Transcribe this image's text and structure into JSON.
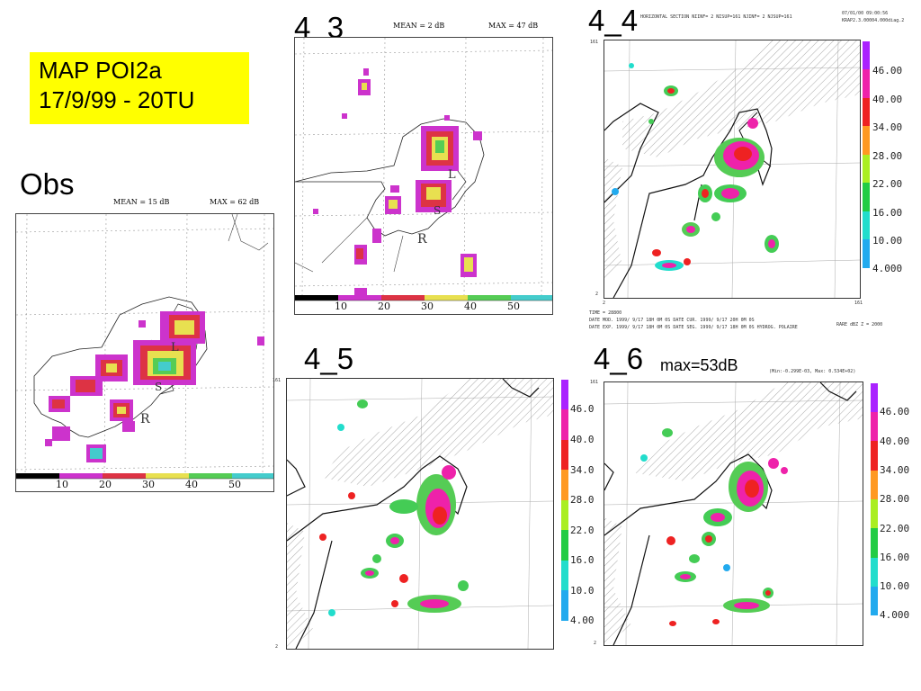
{
  "title": {
    "line1": "MAP POI2a",
    "line2": "17/9/99 - 20TU"
  },
  "obs": {
    "label": "Obs",
    "mean_label": "MEAN =  15 dB",
    "max_label": "MAX =  62 dB",
    "scale_ticks": [
      "10",
      "20",
      "30",
      "40",
      "50"
    ],
    "map_letters": {
      "l": "L",
      "s": "S",
      "r": "R"
    }
  },
  "run_4_3": {
    "label": "4_3",
    "mean_label": "MEAN =   2 dB",
    "max_label": "MAX =  47 dB",
    "scale_ticks": [
      "10",
      "20",
      "30",
      "40",
      "50"
    ],
    "map_letters": {
      "l": "L",
      "s": "S",
      "r": "R"
    }
  },
  "run_4_4": {
    "label": "4_4",
    "header_text": "HORIZONTAL SECTION  NIINF=   2 NISUP=161  NJINF=   2 NJSUP=161",
    "header_right": "07/01/00    09:00:56",
    "header_right2": "KRAP2.3.00004.000diag.2",
    "corner_top": "161",
    "corner_bottom_left": "2",
    "corner_bottom_right": "161",
    "corner_y": "2",
    "footer_lines": [
      "TIME =   28800",
      "DATE MOD. 1999/ 9/17  18H 0M 0S    DATE CUR. 1999/ 9/17  20H 0M 0S",
      "DATE EXP. 1999/ 9/17  18H 0M 0S    DATE SEG. 1999/ 9/17  18H 0M 0S   HYDROG. POLAIRE"
    ],
    "footer_right": "RARE dBZ     Z =  2000",
    "scale_values": [
      "46.00",
      "40.00",
      "34.00",
      "28.00",
      "22.00",
      "16.00",
      "10.00",
      "4.000"
    ]
  },
  "run_4_5": {
    "label": "4_5",
    "corner_top": "161",
    "corner_bottom": "2",
    "scale_values": [
      "46.0",
      "40.0",
      "34.0",
      "28.0",
      "22.0",
      "16.0",
      "10.0",
      "4.00"
    ]
  },
  "run_4_6": {
    "label": "4_6",
    "max_note": "max=53dB",
    "minmax_text": "(Min:-0.299E-03, Max: 0.534E+02)",
    "corner_top": "161",
    "corner_bottom": "2",
    "scale_values": [
      "46.00",
      "40.00",
      "34.00",
      "28.00",
      "22.00",
      "16.00",
      "10.00",
      "4.000"
    ]
  },
  "colors": {
    "title_box": "#ffff00",
    "scale": [
      "#000000",
      "#cc33cc",
      "#dd3344",
      "#e8e050",
      "#55cc55",
      "#44cccc"
    ],
    "vscale": [
      "#aa22ff",
      "#ee22aa",
      "#ee2222",
      "#ff9922",
      "#aaee22",
      "#22cc44",
      "#22ddcc",
      "#22aaee"
    ]
  }
}
